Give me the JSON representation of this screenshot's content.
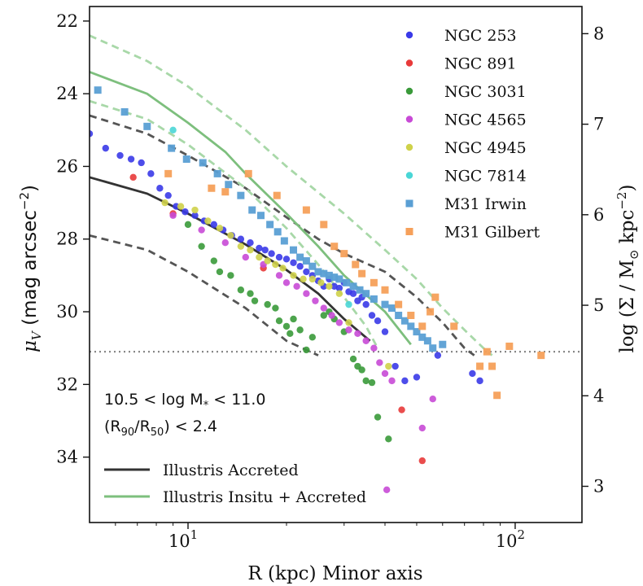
{
  "chart_data": {
    "type": "scatter",
    "xlabel": "R (kpc) Minor axis",
    "ylabel_left": "μ_V (mag arcsec^-2)",
    "ylabel_right": "log (Σ / M_⊙ kpc^-2)",
    "x_scale": "log",
    "xlim": [
      5,
      160
    ],
    "ylim": [
      35.8,
      21.6
    ],
    "y_inverted": true,
    "right_ylim": [
      2.6,
      8.3
    ],
    "x_ticks": [
      {
        "value": 10,
        "label": "10",
        "sup": "1"
      },
      {
        "value": 100,
        "label": "10",
        "sup": "2"
      }
    ],
    "y_ticks": [
      22,
      24,
      26,
      28,
      30,
      32,
      34
    ],
    "right_ticks": [
      3,
      4,
      5,
      6,
      7,
      8
    ],
    "limit_line_y": 31.1,
    "annotations": [
      "10.5 < log M_* < 11.0",
      "(R_90/R_50) < 2.4"
    ],
    "lines": [
      {
        "name": "Illustris Accreted",
        "color": "#333333",
        "style": "solid",
        "points": [
          [
            5,
            26.3
          ],
          [
            7.5,
            26.75
          ],
          [
            10,
            27.3
          ],
          [
            15,
            28.15
          ],
          [
            20,
            28.85
          ],
          [
            25,
            29.5
          ],
          [
            30,
            30.2
          ],
          [
            36,
            30.8
          ]
        ]
      },
      {
        "name": "accreted-upper",
        "color": "#555555",
        "style": "dashed",
        "points": [
          [
            5,
            24.6
          ],
          [
            7.5,
            25.1
          ],
          [
            10,
            25.7
          ],
          [
            15,
            26.6
          ],
          [
            20,
            27.4
          ],
          [
            25,
            28.0
          ],
          [
            30,
            28.4
          ],
          [
            40,
            28.9
          ],
          [
            50,
            29.6
          ],
          [
            60,
            30.3
          ],
          [
            70,
            31.0
          ],
          [
            75,
            31.2
          ]
        ]
      },
      {
        "name": "accreted-lower",
        "color": "#555555",
        "style": "dashed",
        "points": [
          [
            5,
            27.9
          ],
          [
            7.5,
            28.3
          ],
          [
            10,
            28.9
          ],
          [
            15,
            29.9
          ],
          [
            20,
            30.8
          ],
          [
            25,
            31.2
          ]
        ]
      },
      {
        "name": "Illustris Insitu + Accreted",
        "color": "#7dbf7d",
        "style": "solid",
        "points": [
          [
            5,
            23.4
          ],
          [
            7.5,
            24.0
          ],
          [
            10,
            24.8
          ],
          [
            13,
            25.6
          ],
          [
            15,
            26.2
          ],
          [
            20,
            27.3
          ],
          [
            25,
            28.2
          ],
          [
            30,
            29.0
          ],
          [
            40,
            30.0
          ],
          [
            48,
            30.9
          ]
        ]
      },
      {
        "name": "insitu-upper",
        "color": "#a8d8a8",
        "style": "dashed",
        "points": [
          [
            5,
            22.4
          ],
          [
            7.5,
            23.1
          ],
          [
            10,
            23.8
          ],
          [
            15,
            25.0
          ],
          [
            20,
            26.0
          ],
          [
            30,
            27.3
          ],
          [
            40,
            28.3
          ],
          [
            50,
            29.1
          ],
          [
            60,
            29.9
          ],
          [
            70,
            30.5
          ],
          [
            80,
            31.0
          ],
          [
            85,
            31.2
          ]
        ]
      },
      {
        "name": "insitu-lower",
        "color": "#a8d8a8",
        "style": "dashed",
        "points": [
          [
            5,
            24.2
          ],
          [
            7.5,
            24.7
          ],
          [
            10,
            25.4
          ],
          [
            15,
            26.6
          ],
          [
            20,
            27.7
          ],
          [
            25,
            28.7
          ],
          [
            30,
            29.6
          ],
          [
            35,
            30.4
          ],
          [
            38,
            31.0
          ]
        ]
      }
    ],
    "series": [
      {
        "name": "NGC 253",
        "color": "#3a3ae8",
        "marker": "circle",
        "points": [
          [
            5,
            25.1
          ],
          [
            5.6,
            25.5
          ],
          [
            6.2,
            25.7
          ],
          [
            6.7,
            25.8
          ],
          [
            7.2,
            25.9
          ],
          [
            7.7,
            26.2
          ],
          [
            8.2,
            26.6
          ],
          [
            8.7,
            26.8
          ],
          [
            9.2,
            27.1
          ],
          [
            9.8,
            27.25
          ],
          [
            10.5,
            27.35
          ],
          [
            11.2,
            27.5
          ],
          [
            12.0,
            27.6
          ],
          [
            12.8,
            27.75
          ],
          [
            13.6,
            27.9
          ],
          [
            14.5,
            28.0
          ],
          [
            15.5,
            28.1
          ],
          [
            16.5,
            28.25
          ],
          [
            17.2,
            28.3
          ],
          [
            18.0,
            28.4
          ],
          [
            19.0,
            28.5
          ],
          [
            20.0,
            28.55
          ],
          [
            21.0,
            28.65
          ],
          [
            22.0,
            28.75
          ],
          [
            23.0,
            28.9
          ],
          [
            24.0,
            29.0
          ],
          [
            25.0,
            29.15
          ],
          [
            26.0,
            29.3
          ],
          [
            27.0,
            29.1
          ],
          [
            28.0,
            29.3
          ],
          [
            29.0,
            29.35
          ],
          [
            30.0,
            29.2
          ],
          [
            31.0,
            29.45
          ],
          [
            32.0,
            29.5
          ],
          [
            33.0,
            29.7
          ],
          [
            34.0,
            29.6
          ],
          [
            35.0,
            29.8
          ],
          [
            36.5,
            30.1
          ],
          [
            38.0,
            30.25
          ],
          [
            40.0,
            30.55
          ],
          [
            43.0,
            31.5
          ],
          [
            46.0,
            31.9
          ],
          [
            50.0,
            31.8
          ],
          [
            58.0,
            31.2
          ],
          [
            74.0,
            31.7
          ],
          [
            78.0,
            31.9
          ]
        ]
      },
      {
        "name": "NGC 891",
        "color": "#e83a3a",
        "marker": "circle",
        "points": [
          [
            6.8,
            26.3
          ],
          [
            9.0,
            27.3
          ],
          [
            17.0,
            28.8
          ],
          [
            45.0,
            32.7
          ],
          [
            52.0,
            34.1
          ]
        ]
      },
      {
        "name": "NGC 3031",
        "color": "#3a9a3a",
        "marker": "circle",
        "points": [
          [
            10.0,
            27.6
          ],
          [
            11.0,
            28.2
          ],
          [
            12.0,
            28.6
          ],
          [
            12.5,
            28.9
          ],
          [
            13.5,
            29.0
          ],
          [
            14.5,
            29.4
          ],
          [
            15.5,
            29.5
          ],
          [
            16.0,
            29.7
          ],
          [
            17.5,
            29.8
          ],
          [
            18.5,
            29.9
          ],
          [
            19.0,
            30.25
          ],
          [
            20.0,
            30.4
          ],
          [
            20.5,
            30.6
          ],
          [
            21.0,
            30.2
          ],
          [
            22.0,
            30.5
          ],
          [
            23.0,
            31.05
          ],
          [
            24.0,
            30.7
          ],
          [
            26.0,
            30.1
          ],
          [
            27.0,
            30.0
          ],
          [
            28.0,
            30.2
          ],
          [
            30.0,
            30.55
          ],
          [
            32.0,
            31.3
          ],
          [
            33.0,
            31.5
          ],
          [
            34.0,
            31.6
          ],
          [
            35.0,
            31.9
          ],
          [
            36.5,
            31.95
          ],
          [
            38.0,
            32.9
          ],
          [
            41.0,
            33.5
          ]
        ]
      },
      {
        "name": "NGC 4565",
        "color": "#c84ad6",
        "marker": "circle",
        "points": [
          [
            9.0,
            27.35
          ],
          [
            11.0,
            27.75
          ],
          [
            13.0,
            28.1
          ],
          [
            15.0,
            28.5
          ],
          [
            17.0,
            28.7
          ],
          [
            19.0,
            29.0
          ],
          [
            20.0,
            29.2
          ],
          [
            21.5,
            29.3
          ],
          [
            23.0,
            29.5
          ],
          [
            24.5,
            29.7
          ],
          [
            26.0,
            29.9
          ],
          [
            27.5,
            30.1
          ],
          [
            29.0,
            30.3
          ],
          [
            31.0,
            30.5
          ],
          [
            33.0,
            30.6
          ],
          [
            35.0,
            30.8
          ],
          [
            37.0,
            31.0
          ],
          [
            38.5,
            31.4
          ],
          [
            40.0,
            31.7
          ],
          [
            42.0,
            31.9
          ],
          [
            52.0,
            33.2
          ],
          [
            56.0,
            32.4
          ],
          [
            40.5,
            34.9
          ]
        ]
      },
      {
        "name": "NGC 4945",
        "color": "#cfd24a",
        "marker": "circle",
        "points": [
          [
            8.5,
            27.0
          ],
          [
            9.5,
            27.1
          ],
          [
            10.5,
            27.2
          ],
          [
            11.5,
            27.5
          ],
          [
            12.5,
            27.7
          ],
          [
            13.5,
            27.9
          ],
          [
            14.5,
            28.2
          ],
          [
            15.5,
            28.3
          ],
          [
            16.5,
            28.5
          ],
          [
            17.5,
            28.6
          ],
          [
            18.5,
            28.7
          ],
          [
            19.5,
            28.8
          ],
          [
            21.0,
            29.0
          ],
          [
            22.5,
            29.1
          ],
          [
            24.0,
            29.1
          ],
          [
            25.5,
            29.2
          ],
          [
            27.0,
            29.3
          ],
          [
            29.0,
            29.5
          ],
          [
            31.0,
            30.3
          ],
          [
            41.0,
            31.5
          ]
        ]
      },
      {
        "name": "NGC 7814",
        "color": "#4ad6d6",
        "marker": "circle",
        "points": [
          [
            9.0,
            25.0
          ],
          [
            31.0,
            29.8
          ]
        ]
      },
      {
        "name": "M31 Irwin",
        "color": "#5a9fd4",
        "marker": "square",
        "points": [
          [
            5.3,
            23.9
          ],
          [
            6.4,
            24.5
          ],
          [
            7.5,
            24.9
          ],
          [
            8.9,
            25.5
          ],
          [
            9.9,
            25.8
          ],
          [
            11.1,
            25.9
          ],
          [
            12.3,
            26.2
          ],
          [
            13.3,
            26.5
          ],
          [
            14.5,
            26.8
          ],
          [
            15.7,
            27.2
          ],
          [
            16.7,
            27.35
          ],
          [
            17.8,
            27.6
          ],
          [
            18.8,
            27.8
          ],
          [
            19.7,
            28.05
          ],
          [
            21.0,
            28.3
          ],
          [
            22.0,
            28.5
          ],
          [
            23.0,
            28.6
          ],
          [
            24.0,
            28.75
          ],
          [
            25.0,
            28.9
          ],
          [
            26.0,
            28.95
          ],
          [
            27.0,
            29.0
          ],
          [
            28.0,
            29.05
          ],
          [
            29.0,
            29.1
          ],
          [
            30.5,
            29.2
          ],
          [
            32.0,
            29.3
          ],
          [
            33.5,
            29.4
          ],
          [
            35.0,
            29.5
          ],
          [
            37.0,
            29.65
          ],
          [
            40.0,
            29.8
          ],
          [
            42.0,
            29.9
          ],
          [
            44.0,
            30.1
          ],
          [
            46.0,
            30.25
          ],
          [
            48.0,
            30.4
          ],
          [
            50.0,
            30.55
          ],
          [
            52.0,
            30.7
          ],
          [
            54.0,
            30.8
          ],
          [
            56.0,
            31.0
          ],
          [
            60.0,
            30.9
          ]
        ]
      },
      {
        "name": "M31 Gilbert",
        "color": "#f6a05a",
        "marker": "square",
        "points": [
          [
            8.7,
            26.2
          ],
          [
            11.8,
            26.6
          ],
          [
            13.0,
            26.7
          ],
          [
            15.3,
            26.2
          ],
          [
            18.7,
            26.8
          ],
          [
            23.0,
            27.2
          ],
          [
            26.0,
            27.6
          ],
          [
            28.0,
            28.2
          ],
          [
            30.0,
            28.4
          ],
          [
            32.5,
            28.7
          ],
          [
            34.0,
            28.95
          ],
          [
            37.0,
            29.2
          ],
          [
            40.0,
            29.4
          ],
          [
            44.0,
            29.8
          ],
          [
            48.0,
            30.1
          ],
          [
            52.0,
            30.4
          ],
          [
            55.0,
            30.0
          ],
          [
            57.0,
            29.6
          ],
          [
            65.0,
            30.4
          ],
          [
            78.0,
            31.5
          ],
          [
            82.0,
            31.1
          ],
          [
            85.0,
            31.5
          ],
          [
            88.0,
            32.3
          ],
          [
            96.0,
            30.95
          ],
          [
            120.0,
            31.2
          ]
        ]
      }
    ]
  },
  "labels": {
    "xlabel": "R (kpc) Minor axis",
    "ylabel_left_main": "μ",
    "ylabel_left_sub": "V",
    "ylabel_left_unit_open": " (mag arcsec",
    "ylabel_left_unit_exp": "−2",
    "ylabel_left_unit_close": ")",
    "ylabel_right_main": "log (Σ / M",
    "ylabel_right_sub": "⊙",
    "ylabel_right_unit": " kpc",
    "ylabel_right_exp": "−2",
    "ylabel_right_close": ")",
    "anno1_a": "10.5 < log M",
    "anno1_sub": "*",
    "anno1_b": " < 11.0",
    "anno2_a": "(R",
    "anno2_sub1": "90",
    "anno2_mid": "/R",
    "anno2_sub2": "50",
    "anno2_b": ") < 2.4"
  }
}
